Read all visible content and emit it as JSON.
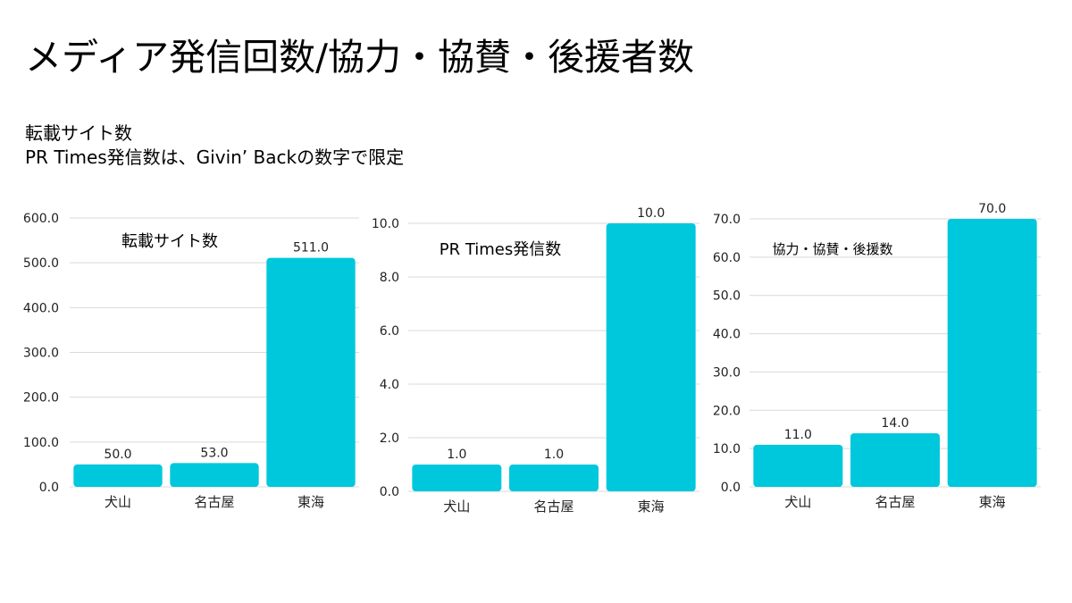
{
  "page": {
    "title": "メディア発信回数/協力・協賛・後援者数",
    "subtitle_lines": [
      "転載サイト数",
      "PR Times発信数は、Givin’ Backの数字で限定"
    ]
  },
  "colors": {
    "bar": "#00c8dc",
    "grid": "#d9d9d9"
  },
  "chart_data": [
    {
      "type": "bar",
      "title": "転載サイト数",
      "categories": [
        "犬山",
        "名古屋",
        "東海"
      ],
      "values": [
        50.0,
        53.0,
        511.0
      ],
      "ylim": [
        0,
        600
      ],
      "yticks": [
        0,
        100,
        200,
        300,
        400,
        500,
        600
      ],
      "decimals": 1,
      "grid": true,
      "legend": "none"
    },
    {
      "type": "bar",
      "title": "PR Times発信数",
      "categories": [
        "犬山",
        "名古屋",
        "東海"
      ],
      "values": [
        1.0,
        1.0,
        10.0
      ],
      "ylim": [
        0,
        10
      ],
      "yticks": [
        0,
        2,
        4,
        6,
        8,
        10
      ],
      "decimals": 1,
      "grid": true,
      "legend": "none"
    },
    {
      "type": "bar",
      "title": "協力・協賛・後援数",
      "categories": [
        "犬山",
        "名古屋",
        "東海"
      ],
      "values": [
        11.0,
        14.0,
        70.0
      ],
      "ylim": [
        0,
        70
      ],
      "yticks": [
        0,
        10,
        20,
        30,
        40,
        50,
        60,
        70
      ],
      "decimals": 1,
      "grid": true,
      "legend": "none"
    }
  ]
}
